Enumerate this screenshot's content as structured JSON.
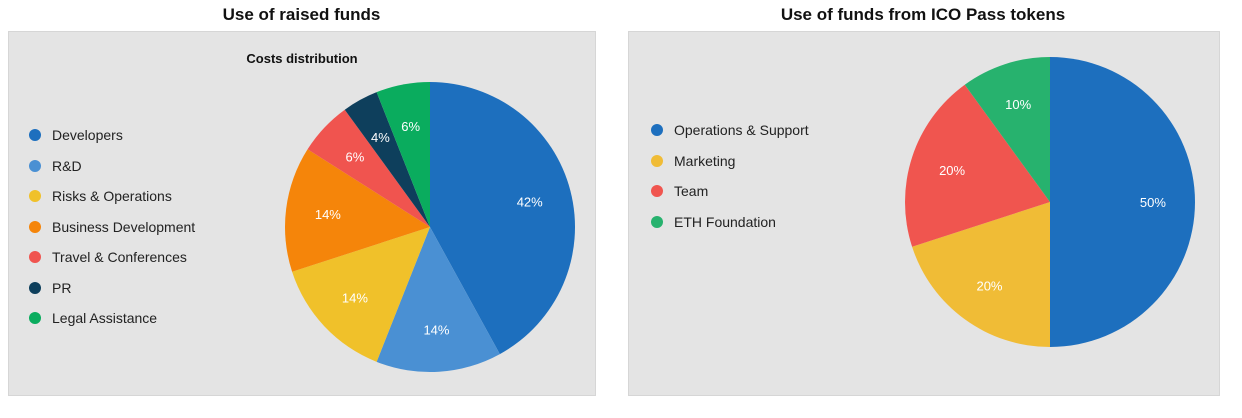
{
  "chart_data": [
    {
      "type": "pie",
      "title": "Use of raised funds",
      "subtitle": "Costs distribution",
      "legend_position": "left",
      "slices": [
        {
          "label": "Developers",
          "value": 42,
          "display": "42%",
          "color": "#1d6fbe"
        },
        {
          "label": "R&D",
          "value": 14,
          "display": "14%",
          "color": "#4a90d3"
        },
        {
          "label": "Risks & Operations",
          "value": 14,
          "display": "14%",
          "color": "#f0c12a"
        },
        {
          "label": "Business Development",
          "value": 14,
          "display": "14%",
          "color": "#f5850a"
        },
        {
          "label": "Travel & Conferences",
          "value": 6,
          "display": "6%",
          "color": "#f0544f"
        },
        {
          "label": "PR",
          "value": 4,
          "display": "4%",
          "color": "#0e3f5c"
        },
        {
          "label": "Legal Assistance",
          "value": 6,
          "display": "6%",
          "color": "#0aac5e"
        }
      ]
    },
    {
      "type": "pie",
      "title": "Use of funds from ICO Pass tokens",
      "subtitle": "",
      "legend_position": "left",
      "slices": [
        {
          "label": "Operations & Support",
          "value": 50,
          "display": "50%",
          "color": "#1d6fbe"
        },
        {
          "label": "Marketing",
          "value": 20,
          "display": "20%",
          "color": "#f0bc36"
        },
        {
          "label": "Team",
          "value": 20,
          "display": "20%",
          "color": "#f0554f"
        },
        {
          "label": "ETH Foundation",
          "value": 10,
          "display": "10%",
          "color": "#27b26e"
        }
      ]
    }
  ]
}
